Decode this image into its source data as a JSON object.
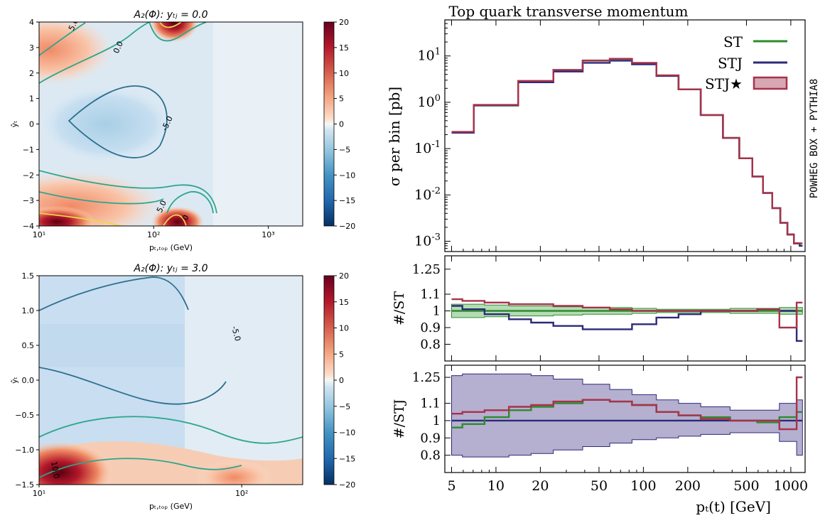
{
  "chart_data": [
    {
      "type": "heatmap",
      "title": "A₂(Φ):  yₜⱼ = 0.0",
      "xlabel": "pₜ,ₜₒₚ (GeV)",
      "ylabel": "ŷₜ",
      "xscale": "log",
      "xlim": [
        10,
        2000
      ],
      "ylim": [
        -4,
        4
      ],
      "xticks": [
        "10¹",
        "10²",
        "10³"
      ],
      "yticks": [
        "4",
        "3",
        "2",
        "1",
        "0",
        "−1",
        "−2",
        "−3",
        "−4"
      ],
      "colorbar": {
        "range": [
          -20,
          20
        ],
        "ticks": [
          "20",
          "15",
          "10",
          "5",
          "0",
          "−5",
          "−10",
          "−15",
          "−20"
        ],
        "colormap": "RdBu_r"
      },
      "contour_labels": [
        "5.0",
        "0.0",
        "-5.0",
        "5.0",
        "0",
        "0"
      ]
    },
    {
      "type": "heatmap",
      "title": "A₂(Φ):  yₜⱼ = 3.0",
      "xlabel": "pₜ,ₜₒₚ (GeV)",
      "ylabel": "ŷₜ",
      "xscale": "log",
      "xlim": [
        10,
        200
      ],
      "ylim": [
        -1.5,
        1.5
      ],
      "xticks": [
        "10¹",
        "10²"
      ],
      "yticks": [
        "1.5",
        "1.0",
        "0.5",
        "0.0",
        "−0.5",
        "−1.0",
        "−1.5"
      ],
      "colorbar": {
        "range": [
          -20,
          20
        ],
        "ticks": [
          "20",
          "15",
          "10",
          "5",
          "0",
          "−5",
          "−10",
          "−15",
          "−20"
        ],
        "colormap": "RdBu_r"
      },
      "contour_labels": [
        "-5.0",
        "10.0"
      ]
    },
    {
      "type": "line",
      "title": "Top quark transverse momentum",
      "xlabel": "pₜ(t) [GeV]",
      "ylabel": "σ per bin [pb]",
      "side_label": "POWHEG BOX + PYTHIA8",
      "xscale": "log",
      "yscale": "log",
      "xlim": [
        4.5,
        1250
      ],
      "ylim": [
        0.0006,
        60
      ],
      "xticks": [
        "5",
        "10",
        "20",
        "50",
        "100",
        "200",
        "500",
        "1000"
      ],
      "legend": [
        "ST",
        "STJ",
        "STJ★"
      ],
      "legend_position": "top-right",
      "x": [
        5,
        10,
        20,
        30,
        50,
        70,
        100,
        150,
        200,
        300,
        400,
        500,
        600,
        700,
        800,
        900,
        1000,
        1100,
        1200
      ],
      "series": [
        {
          "name": "ST",
          "color": "#2e8b2e",
          "values": [
            0.22,
            0.85,
            2.8,
            5.0,
            7.9,
            8.6,
            7.0,
            3.8,
            1.9,
            0.53,
            0.17,
            0.062,
            0.025,
            0.011,
            0.0052,
            0.0025,
            0.0014,
            0.0009,
            0.0008
          ]
        },
        {
          "name": "STJ",
          "color": "#2b2b7a",
          "values": [
            0.22,
            0.86,
            2.7,
            4.6,
            7.1,
            7.9,
            6.6,
            3.7,
            1.9,
            0.53,
            0.17,
            0.062,
            0.025,
            0.011,
            0.0052,
            0.0025,
            0.0014,
            0.0009,
            0.0008
          ]
        },
        {
          "name": "STJ★",
          "color": "#a8324a",
          "values": [
            0.23,
            0.88,
            2.9,
            5.0,
            8.0,
            8.7,
            7.1,
            3.8,
            1.9,
            0.53,
            0.17,
            0.062,
            0.025,
            0.011,
            0.0052,
            0.0025,
            0.0014,
            0.0009,
            0.0009
          ]
        }
      ],
      "ratio_panels": [
        {
          "ylabel": "#/ST",
          "ylim": [
            0.7,
            1.33
          ],
          "yticks": [
            "1.25",
            "1.1",
            "1",
            "0.9",
            "0.8"
          ],
          "x": [
            5,
            7,
            10,
            15,
            20,
            30,
            50,
            70,
            100,
            150,
            200,
            300,
            500,
            700,
            1000,
            1200
          ],
          "band": {
            "name": "ST",
            "lower": [
              0.96,
              0.96,
              0.965,
              0.97,
              0.97,
              0.975,
              0.98,
              0.98,
              0.985,
              0.99,
              0.99,
              0.99,
              0.985,
              0.985,
              0.98,
              0.98
            ],
            "upper": [
              1.04,
              1.04,
              1.035,
              1.03,
              1.03,
              1.025,
              1.02,
              1.02,
              1.015,
              1.01,
              1.01,
              1.01,
              1.015,
              1.015,
              1.02,
              1.02
            ]
          },
          "series": [
            {
              "name": "ST",
              "color": "#2e8b2e",
              "values": [
                1,
                1,
                1,
                1,
                1,
                1,
                1,
                1,
                1,
                1,
                1,
                1,
                1,
                1,
                1,
                1
              ]
            },
            {
              "name": "STJ",
              "color": "#2b2b7a",
              "values": [
                1.03,
                1.01,
                0.98,
                0.95,
                0.93,
                0.91,
                0.89,
                0.89,
                0.92,
                0.96,
                0.98,
                1.0,
                1.0,
                1.01,
                1.0,
                0.82
              ]
            },
            {
              "name": "STJ★",
              "color": "#a8324a",
              "values": [
                1.07,
                1.06,
                1.05,
                1.04,
                1.04,
                1.03,
                1.02,
                1.01,
                1.0,
                1.0,
                1.0,
                1.0,
                1.0,
                1.01,
                0.9,
                1.05
              ]
            }
          ]
        },
        {
          "ylabel": "#/STJ",
          "ylim": [
            0.7,
            1.32
          ],
          "yticks": [
            "1.25",
            "1.1",
            "1",
            "0.9",
            "0.8"
          ],
          "x": [
            5,
            7,
            10,
            15,
            20,
            30,
            50,
            70,
            100,
            150,
            200,
            300,
            500,
            700,
            1000,
            1200
          ],
          "band": {
            "name": "STJ",
            "lower": [
              0.8,
              0.79,
              0.79,
              0.8,
              0.81,
              0.83,
              0.85,
              0.87,
              0.89,
              0.9,
              0.91,
              0.92,
              0.93,
              0.93,
              0.88,
              0.8
            ],
            "upper": [
              1.26,
              1.27,
              1.27,
              1.27,
              1.26,
              1.24,
              1.21,
              1.18,
              1.15,
              1.12,
              1.1,
              1.08,
              1.06,
              1.06,
              1.1,
              1.12
            ]
          },
          "series": [
            {
              "name": "STJ",
              "color": "#2b2b7a",
              "values": [
                1,
                1,
                1,
                1,
                1,
                1,
                1,
                1,
                1,
                1,
                1,
                1,
                1,
                1,
                1,
                1
              ]
            },
            {
              "name": "ST",
              "color": "#2e8b2e",
              "values": [
                0.96,
                0.98,
                1.02,
                1.06,
                1.08,
                1.1,
                1.12,
                1.11,
                1.09,
                1.05,
                1.03,
                1.02,
                1.0,
                0.99,
                1.02,
                1.05
              ]
            },
            {
              "name": "STJ★",
              "color": "#a8324a",
              "values": [
                1.04,
                1.05,
                1.06,
                1.08,
                1.09,
                1.11,
                1.12,
                1.11,
                1.09,
                1.05,
                1.03,
                1.01,
                1.0,
                1.0,
                0.95,
                1.25
              ]
            }
          ]
        }
      ]
    }
  ]
}
